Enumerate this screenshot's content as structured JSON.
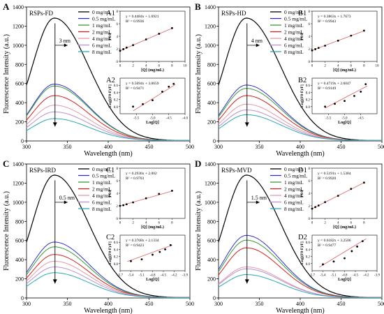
{
  "chart_data": [
    {
      "id": "A",
      "panel_label": "A",
      "title": "RSPs-FD",
      "type": "line",
      "xlabel": "Wavelength (nm)",
      "ylabel": "Fluorescence Intensity (a.u.)",
      "xlim": [
        300,
        500
      ],
      "ylim": [
        0,
        1400
      ],
      "xticks": [
        300,
        350,
        400,
        450,
        500
      ],
      "yticks": [
        0,
        200,
        400,
        600,
        800,
        1000,
        1200,
        1400
      ],
      "peak_x": 334,
      "sigma_left": 27,
      "sigma_right": 42,
      "shift_label": "3 nm",
      "series": [
        {
          "name": "0 mg/mL",
          "color": "#000000",
          "peak": 1280
        },
        {
          "name": "0.5 mg/mL",
          "color": "#2f2fd0",
          "peak": 590
        },
        {
          "name": "1 mg/mL",
          "color": "#3a9a3a",
          "peak": 570
        },
        {
          "name": "2 mg/mL",
          "color": "#d42020",
          "peak": 470
        },
        {
          "name": "4 mg/mL",
          "color": "#e39aa6",
          "peak": 370
        },
        {
          "name": "6 mg/mL",
          "color": "#b990d0",
          "peak": 300
        },
        {
          "name": "8 mg/mL",
          "color": "#2aa9b8",
          "peak": 230
        }
      ],
      "insets": [
        {
          "label": "A1",
          "equation": "y = 0.4484x + 1.6921",
          "r2": "R² = 0.9936",
          "xlabel": "[Q] (mg/mL)",
          "ylabel": "F0/F",
          "xlim": [
            0,
            10
          ],
          "ylim": [
            0,
            8
          ],
          "xticks": [
            0,
            2,
            4,
            6,
            8,
            10
          ],
          "yticks": [
            0,
            2,
            4,
            6,
            8
          ],
          "x": [
            0,
            0.5,
            1,
            2,
            4,
            6,
            8
          ],
          "y": [
            1.7,
            1.95,
            2.2,
            2.6,
            3.5,
            4.4,
            5.3
          ],
          "fit": [
            [
              0,
              1.69
            ],
            [
              8,
              5.28
            ]
          ]
        },
        {
          "label": "A2",
          "equation": "y = 0.5694x + 3.0659",
          "r2": "R² = 0.9471",
          "xlabel": "Log[Q]",
          "ylabel": "Log[(F0-F)/F]",
          "xlim": [
            -6.0,
            -4.0
          ],
          "ylim": [
            -0.2,
            0.8
          ],
          "xticks": [
            -5.5,
            -5.0,
            -4.5,
            -4.0
          ],
          "yticks": [
            0.0,
            0.2,
            0.4,
            0.6
          ],
          "x": [
            -5.6,
            -5.3,
            -5.0,
            -4.7,
            -4.5,
            -4.35
          ],
          "y": [
            0.0,
            0.07,
            0.18,
            0.42,
            0.56,
            0.64
          ],
          "fit": [
            [
              -5.6,
              -0.12
            ],
            [
              -4.3,
              0.62
            ]
          ]
        }
      ]
    },
    {
      "id": "B",
      "panel_label": "B",
      "title": "RSPs-HD",
      "type": "line",
      "xlabel": "Wavelength (nm)",
      "ylabel": "Fluorescence Intensity (a.u.)",
      "xlim": [
        300,
        500
      ],
      "ylim": [
        0,
        1400
      ],
      "xticks": [
        300,
        350,
        400,
        450,
        500
      ],
      "yticks": [
        0,
        200,
        400,
        600,
        800,
        1000,
        1200,
        1400
      ],
      "peak_x": 334,
      "sigma_left": 27,
      "sigma_right": 42,
      "shift_label": "4 nm",
      "series": [
        {
          "name": "0 mg/mL",
          "color": "#000000",
          "peak": 1280
        },
        {
          "name": "0.5 mg/mL",
          "color": "#2f2fd0",
          "peak": 580
        },
        {
          "name": "1 mg/mL",
          "color": "#3a9a3a",
          "peak": 545
        },
        {
          "name": "2 mg/mL",
          "color": "#d42020",
          "peak": 470
        },
        {
          "name": "4 mg/mL",
          "color": "#e39aa6",
          "peak": 380
        },
        {
          "name": "6 mg/mL",
          "color": "#b990d0",
          "peak": 320
        },
        {
          "name": "8 mg/mL",
          "color": "#2aa9b8",
          "peak": 270
        }
      ],
      "insets": [
        {
          "label": "B1",
          "equation": "y = 0.3863x + 1.7673",
          "r2": "R² = 0.9943",
          "xlabel": "[Q] (mg/mL)",
          "ylabel": "F0/F",
          "xlim": [
            0,
            10
          ],
          "ylim": [
            0,
            8
          ],
          "xticks": [
            0,
            2,
            4,
            6,
            8,
            10
          ],
          "yticks": [
            0,
            2,
            4,
            6,
            8
          ],
          "x": [
            0,
            0.5,
            1,
            2,
            4,
            6,
            8
          ],
          "y": [
            1.75,
            1.95,
            2.15,
            2.5,
            3.3,
            4.1,
            4.9
          ],
          "fit": [
            [
              0,
              1.77
            ],
            [
              8,
              4.86
            ]
          ]
        },
        {
          "label": "B2",
          "equation": "y = 0.4719x + 2.6047",
          "r2": "R² = 0.9149",
          "xlabel": "Log[Q]",
          "ylabel": "Log[(F0-F)/F]",
          "xlim": [
            -6.0,
            -4.0
          ],
          "ylim": [
            -0.2,
            0.8
          ],
          "xticks": [
            -5.5,
            -5.0,
            -4.5
          ],
          "yticks": [
            0.0,
            0.2,
            0.4,
            0.6
          ],
          "x": [
            -5.6,
            -5.3,
            -5.0,
            -4.7,
            -4.5,
            -4.35
          ],
          "y": [
            0.0,
            0.08,
            0.16,
            0.3,
            0.42,
            0.63
          ],
          "fit": [
            [
              -5.6,
              -0.04
            ],
            [
              -4.3,
              0.58
            ]
          ]
        }
      ]
    },
    {
      "id": "C",
      "panel_label": "C",
      "title": "RSPs-IRD",
      "type": "line",
      "xlabel": "Wavelength (nm)",
      "ylabel": "Fluorescence Intensity (a.u.)",
      "xlim": [
        300,
        500
      ],
      "ylim": [
        0,
        1400
      ],
      "xticks": [
        300,
        350,
        400,
        450,
        500
      ],
      "yticks": [
        0,
        200,
        400,
        600,
        800,
        1000,
        1200,
        1400
      ],
      "peak_x": 334,
      "sigma_left": 27,
      "sigma_right": 42,
      "shift_label": "0.5 nm",
      "series": [
        {
          "name": "0 mg/mL",
          "color": "#000000",
          "peak": 1280
        },
        {
          "name": "0.5 mg/mL",
          "color": "#2f2fd0",
          "peak": 580
        },
        {
          "name": "1 mg/mL",
          "color": "#3a9a3a",
          "peak": 530
        },
        {
          "name": "2 mg/mL",
          "color": "#d42020",
          "peak": 450
        },
        {
          "name": "4 mg/mL",
          "color": "#e39aa6",
          "peak": 380
        },
        {
          "name": "6 mg/mL",
          "color": "#b990d0",
          "peak": 320
        },
        {
          "name": "8 mg/mL",
          "color": "#2aa9b8",
          "peak": 260
        }
      ],
      "insets": [
        {
          "label": "C1",
          "equation": "y = 0.2936x + 2.002",
          "r2": "R² = 0.9703",
          "xlabel": "[Q] (mg/mL)",
          "ylabel": "F0/F",
          "xlim": [
            0,
            10
          ],
          "ylim": [
            0,
            8
          ],
          "xticks": [
            0,
            2,
            4,
            6,
            8
          ],
          "yticks": [
            0,
            2,
            4,
            6,
            8
          ],
          "x": [
            0,
            0.5,
            1,
            2,
            4,
            6,
            8
          ],
          "y": [
            2.0,
            2.1,
            2.25,
            2.55,
            3.2,
            3.9,
            4.4
          ],
          "fit": [
            [
              0,
              2.0
            ],
            [
              8,
              4.35
            ]
          ]
        },
        {
          "label": "C2",
          "equation": "y = 0.3768x + 2.1334",
          "r2": "R² = 0.9423",
          "xlabel": "Log[Q]",
          "ylabel": "Log[(F0-F)/F]",
          "xlim": [
            -5.7,
            -3.9
          ],
          "ylim": [
            -0.2,
            0.8
          ],
          "xticks": [
            -5.7,
            -5.4,
            -5.1,
            -4.8,
            -4.5,
            -4.2,
            -3.9
          ],
          "yticks": [
            0.0,
            0.2,
            0.4,
            0.6
          ],
          "x": [
            -5.4,
            -5.1,
            -4.8,
            -4.6,
            -4.45,
            -4.3
          ],
          "y": [
            0.07,
            0.12,
            0.25,
            0.33,
            0.4,
            0.52
          ],
          "fit": [
            [
              -5.5,
              0.06
            ],
            [
              -4.25,
              0.52
            ]
          ]
        }
      ]
    },
    {
      "id": "D",
      "panel_label": "D",
      "title": "RSPs-MVD",
      "type": "line",
      "xlabel": "Wavelength (nm)",
      "ylabel": "Fluorescence Intensity (a.u.)",
      "xlim": [
        300,
        500
      ],
      "ylim": [
        0,
        1400
      ],
      "xticks": [
        300,
        350,
        400,
        450,
        500
      ],
      "yticks": [
        0,
        200,
        400,
        600,
        800,
        1000,
        1200,
        1400
      ],
      "peak_x": 334,
      "sigma_left": 27,
      "sigma_right": 42,
      "shift_label": "1.5 nm",
      "series": [
        {
          "name": "0 mg/mL",
          "color": "#000000",
          "peak": 1280
        },
        {
          "name": "0.5 mg/mL",
          "color": "#2f2fd0",
          "peak": 650
        },
        {
          "name": "1 mg/mL",
          "color": "#3a9a3a",
          "peak": 600
        },
        {
          "name": "2 mg/mL",
          "color": "#d42020",
          "peak": 520
        },
        {
          "name": "4 mg/mL",
          "color": "#e39aa6",
          "peak": 320
        },
        {
          "name": "6 mg/mL",
          "color": "#b990d0",
          "peak": 300
        },
        {
          "name": "8 mg/mL",
          "color": "#2aa9b8",
          "peak": 240
        }
      ],
      "insets": [
        {
          "label": "D1",
          "equation": "y = 0.5191x + 1.5384",
          "r2": "R² = 0.9920",
          "xlabel": "[Q] (mg/mL)",
          "ylabel": "F0/F",
          "xlim": [
            0,
            10
          ],
          "ylim": [
            0,
            8
          ],
          "xticks": [
            0,
            2,
            4,
            6,
            8
          ],
          "yticks": [
            0,
            2,
            4,
            6,
            8
          ],
          "x": [
            0,
            0.5,
            1,
            2,
            4,
            6,
            8
          ],
          "y": [
            1.55,
            1.8,
            2.05,
            2.6,
            3.6,
            4.7,
            5.7
          ],
          "fit": [
            [
              0,
              1.54
            ],
            [
              8,
              5.69
            ]
          ]
        },
        {
          "label": "D2",
          "equation": "y = 0.6182x + 3.2506",
          "r2": "R² = 0.9477",
          "xlabel": "Log[Q]",
          "ylabel": "Log[(F0-F)/F]",
          "xlim": [
            -5.7,
            -3.9
          ],
          "ylim": [
            -0.2,
            0.8
          ],
          "xticks": [
            -5.7,
            -5.4,
            -5.1,
            -4.8,
            -4.5,
            -4.2,
            -3.9
          ],
          "yticks": [
            0.0,
            0.2,
            0.4,
            0.6
          ],
          "x": [
            -5.4,
            -5.1,
            -4.8,
            -4.6,
            -4.45,
            -4.3
          ],
          "y": [
            -0.02,
            0.06,
            0.15,
            0.35,
            0.48,
            0.63
          ],
          "fit": [
            [
              -5.5,
              -0.1
            ],
            [
              -4.2,
              0.7
            ]
          ]
        }
      ]
    }
  ]
}
